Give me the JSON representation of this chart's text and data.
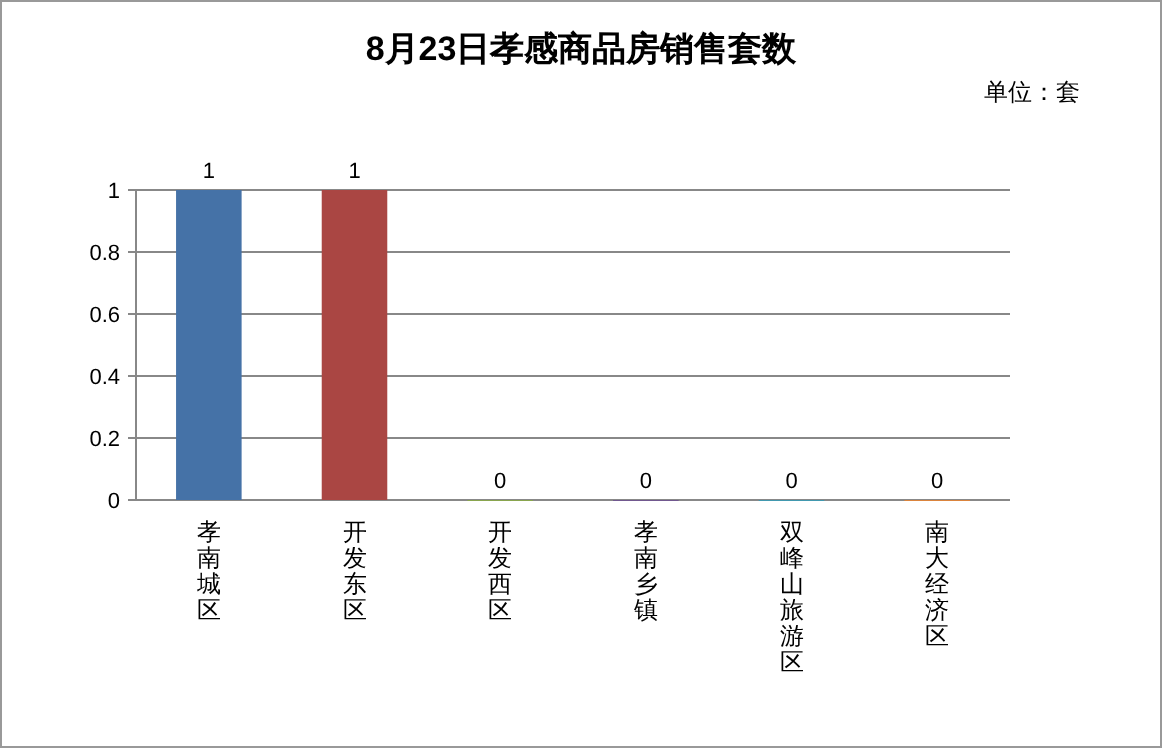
{
  "chart_data": {
    "type": "bar",
    "title": "8月23日孝感商品房销售套数",
    "subtitle": "单位：套",
    "categories": [
      "孝南城区",
      "开发东区",
      "开发西区",
      "孝南乡镇",
      "双峰山旅游区",
      "南大经济区"
    ],
    "values": [
      1,
      1,
      0,
      0,
      0,
      0
    ],
    "colors": [
      "#4572a7",
      "#aa4643",
      "#89a54e",
      "#71588f",
      "#4198af",
      "#db843d"
    ],
    "ylim": [
      0,
      1
    ],
    "yticks": [
      0,
      0.2,
      0.4,
      0.6,
      0.8,
      1
    ],
    "grid": "y",
    "data_labels": true
  }
}
